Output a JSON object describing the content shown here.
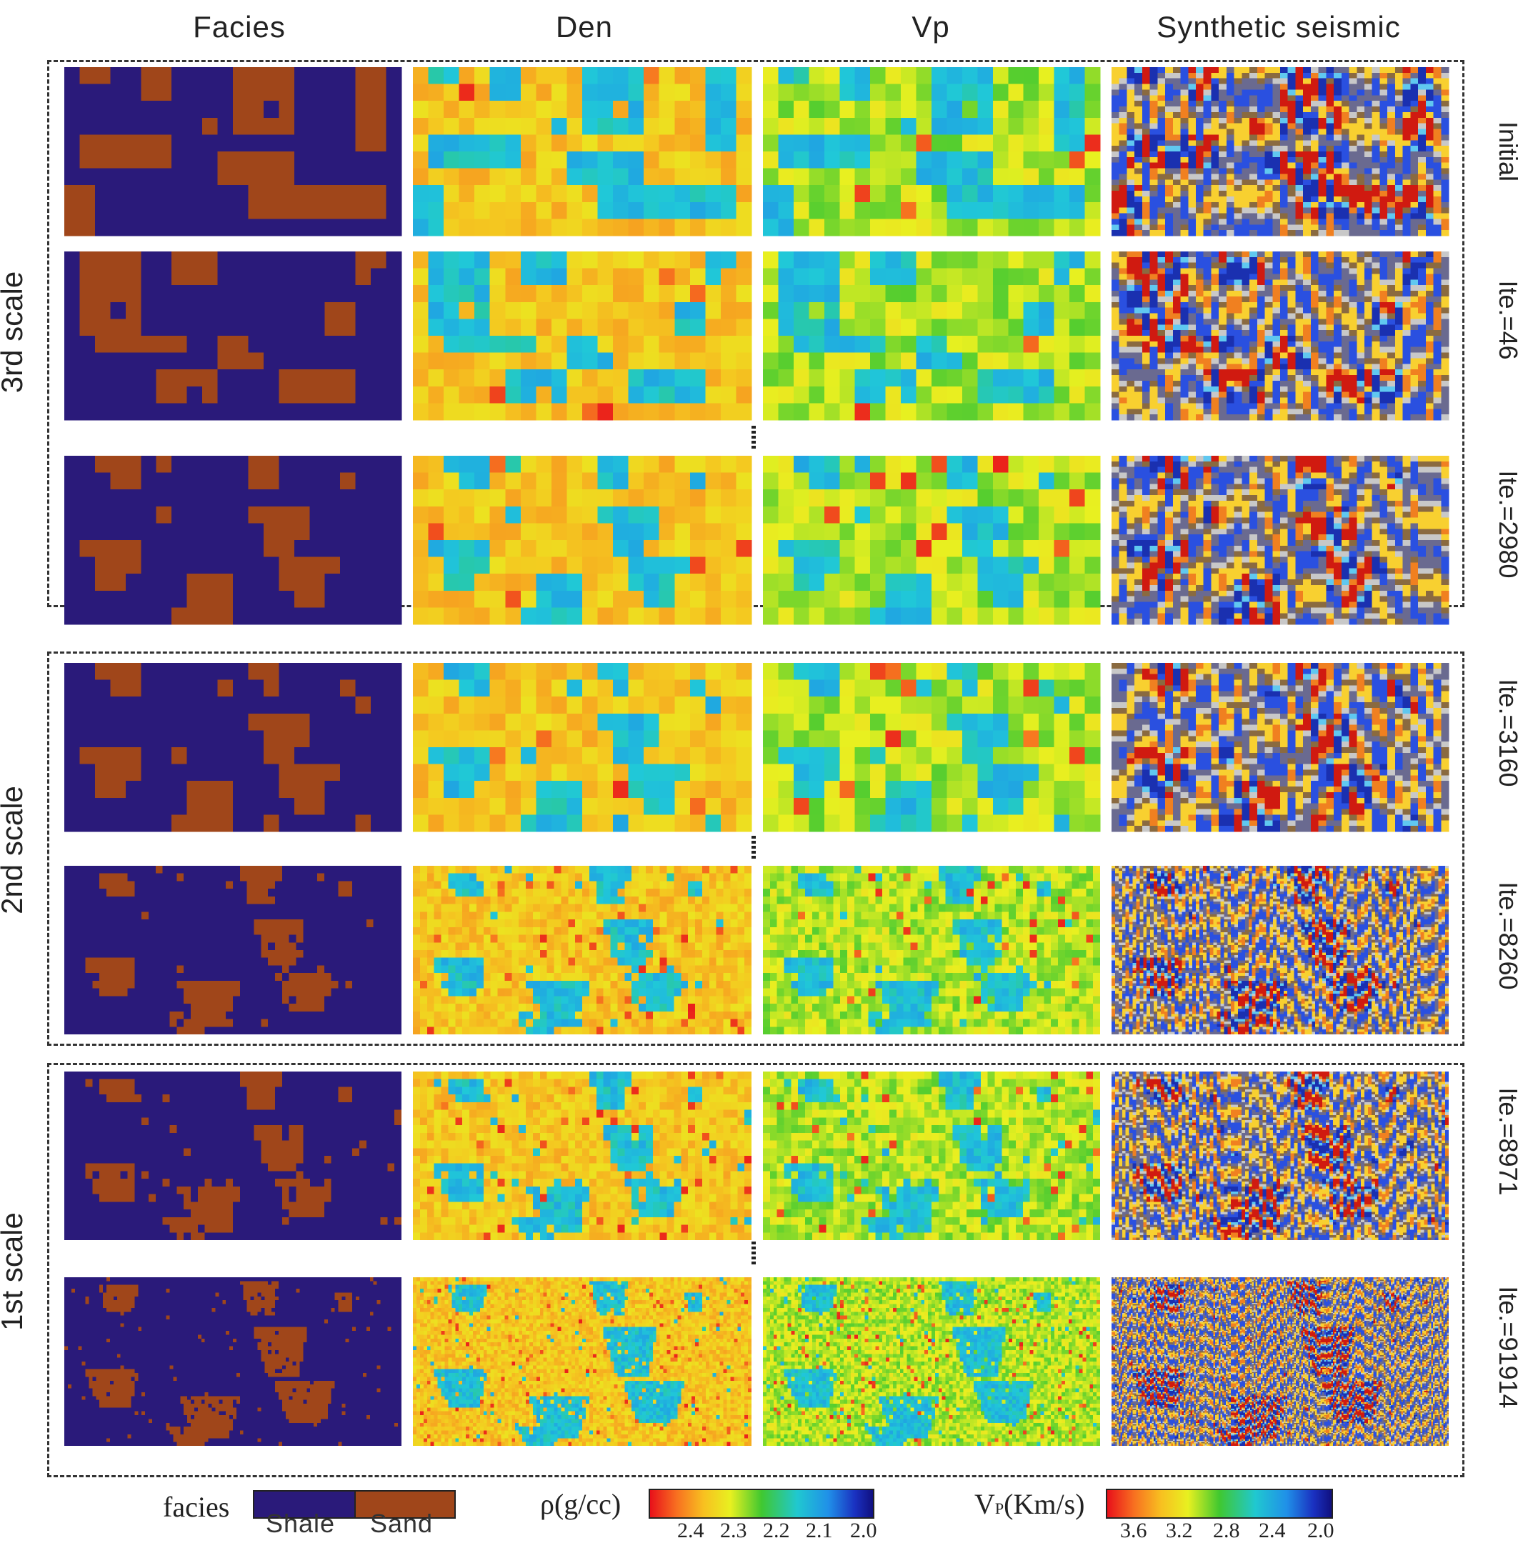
{
  "columns": [
    "Facies",
    "Den",
    "Vp",
    "Synthetic seismic"
  ],
  "scales": [
    "3rd scale",
    "2nd scale",
    "1st scale"
  ],
  "rows": [
    {
      "label": "Initial"
    },
    {
      "label": "Ite.=46"
    },
    {
      "label": "Ite.=2980"
    },
    {
      "label": "Ite.=3160"
    },
    {
      "label": "Ite.=8260"
    },
    {
      "label": "Ite.=8971"
    },
    {
      "label": "Ite.=91914"
    }
  ],
  "legend": {
    "facies": {
      "title": "facies",
      "classes": [
        "Shale",
        "Sand"
      ],
      "colors": [
        "#2a1a7a",
        "#a0461a"
      ]
    },
    "density": {
      "title": "ρ(g/cc)",
      "ticks": [
        "2.4",
        "2.3",
        "2.2",
        "2.1",
        "2.0"
      ]
    },
    "vp": {
      "title_main": "V",
      "title_sub": "P",
      "title_rest": "(Km/s)",
      "ticks": [
        "3.6",
        "3.2",
        "2.8",
        "2.4",
        "2.0"
      ]
    }
  },
  "colors": {
    "shale": "#2a1a7a",
    "sand": "#a0461a",
    "jet_reverse": [
      "#e8101a",
      "#f8a020",
      "#f0f020",
      "#20c020",
      "#20c8e0",
      "#1a40d0",
      "#101080"
    ]
  }
}
